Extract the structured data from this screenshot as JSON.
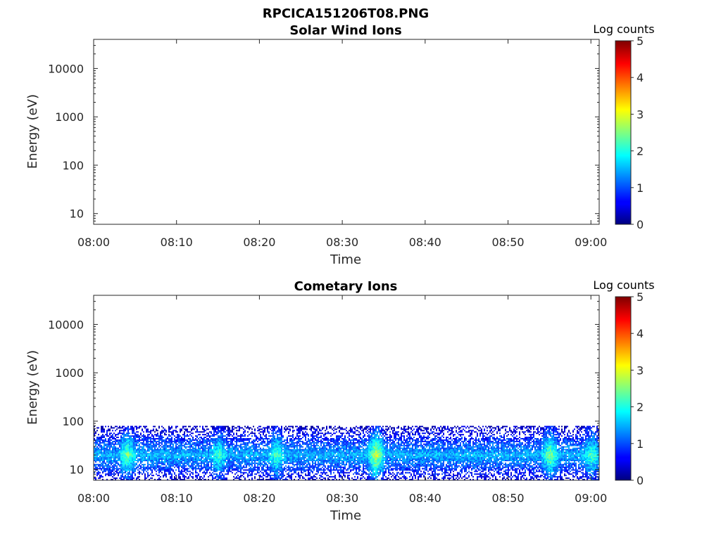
{
  "figure_title": "RPCICA151206T08.PNG",
  "chart_data": [
    {
      "type": "heatmap",
      "title": "Solar Wind Ions",
      "xlabel": "Time",
      "ylabel": "Energy (eV)",
      "xticks": [
        "08:00",
        "08:10",
        "08:20",
        "08:30",
        "08:40",
        "08:50",
        "09:00"
      ],
      "yticks": [
        10,
        100,
        1000,
        10000
      ],
      "ylim": [
        6,
        40000
      ],
      "yscale": "log",
      "colorbar": {
        "label": "Log counts",
        "min": 0,
        "max": 5,
        "ticks": [
          0,
          1,
          2,
          3,
          4,
          5
        ],
        "colormap": "jet"
      },
      "data_description": "empty",
      "bands": []
    },
    {
      "type": "heatmap",
      "title": "Cometary Ions",
      "xlabel": "Time",
      "ylabel": "Energy (eV)",
      "xticks": [
        "08:00",
        "08:10",
        "08:20",
        "08:30",
        "08:40",
        "08:50",
        "09:00"
      ],
      "yticks": [
        10,
        100,
        1000,
        10000
      ],
      "ylim": [
        6,
        40000
      ],
      "yscale": "log",
      "colorbar": {
        "label": "Log counts",
        "min": 0,
        "max": 5,
        "ticks": [
          0,
          1,
          2,
          3,
          4,
          5
        ],
        "colormap": "jet"
      },
      "energy_range_eV": [
        6,
        80
      ],
      "peak_energy_eV": 20,
      "typical_log_counts": 1.5,
      "bursts": [
        {
          "time": "08:04",
          "log_counts": 2.5
        },
        {
          "time": "08:15",
          "log_counts": 2.2
        },
        {
          "time": "08:22",
          "log_counts": 2.3
        },
        {
          "time": "08:34",
          "log_counts": 3.0
        },
        {
          "time": "08:55",
          "log_counts": 2.6
        },
        {
          "time": "09:00",
          "log_counts": 2.3
        }
      ]
    }
  ]
}
